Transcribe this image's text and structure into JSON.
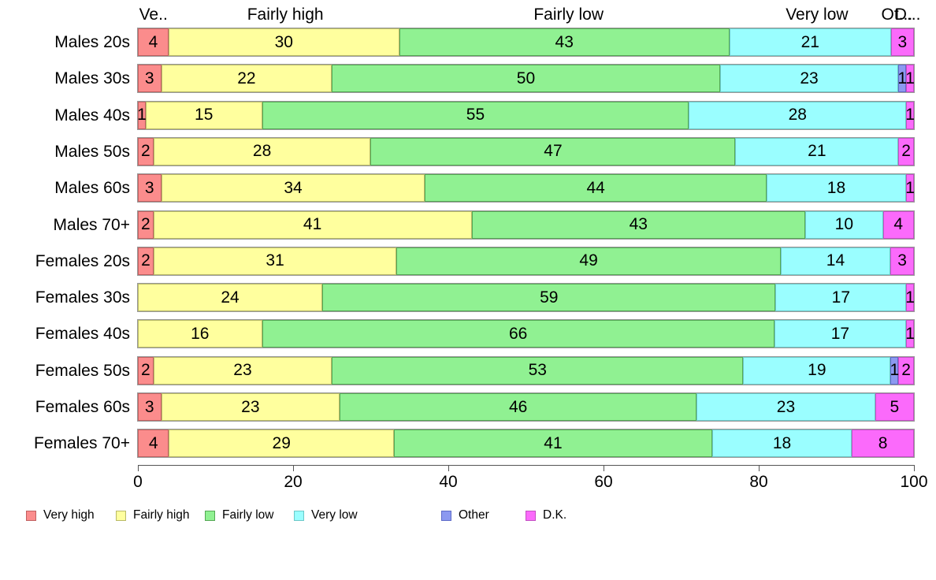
{
  "chart_data": {
    "type": "bar",
    "variant": "stacked-horizontal-100pct",
    "categories": [
      "Males 20s",
      "Males 30s",
      "Males 40s",
      "Males 50s",
      "Males 60s",
      "Males 70+",
      "Females 20s",
      "Females 30s",
      "Females 40s",
      "Females 50s",
      "Females 60s",
      "Females 70+"
    ],
    "series": [
      {
        "name": "Very high",
        "color": "#FB8C8C",
        "border": "#C06060",
        "values": [
          4,
          3,
          1,
          2,
          3,
          2,
          2,
          0,
          0,
          2,
          3,
          4
        ]
      },
      {
        "name": "Fairly high",
        "color": "#FFFF9E",
        "border": "#B9BA67",
        "values": [
          30,
          22,
          15,
          28,
          34,
          41,
          31,
          24,
          16,
          23,
          23,
          29
        ]
      },
      {
        "name": "Fairly low",
        "color": "#90F192",
        "border": "#54A854",
        "values": [
          43,
          50,
          55,
          47,
          44,
          43,
          49,
          59,
          66,
          53,
          46,
          41
        ]
      },
      {
        "name": "Very low",
        "color": "#9AFEFF",
        "border": "#6CC8C8",
        "values": [
          21,
          23,
          28,
          21,
          18,
          10,
          14,
          17,
          17,
          19,
          23,
          18
        ]
      },
      {
        "name": "Other",
        "color": "#8C99F0",
        "border": "#5E6BC8",
        "values": [
          0,
          1,
          0,
          0,
          0,
          0,
          0,
          0,
          0,
          1,
          0,
          0
        ]
      },
      {
        "name": "D.K.",
        "color": "#FB6AFB",
        "border": "#C34FC3",
        "values": [
          3,
          1,
          1,
          2,
          1,
          4,
          3,
          1,
          1,
          2,
          5,
          8
        ]
      }
    ],
    "column_headers": [
      {
        "label": "Ve..",
        "anchor_pct": 2.0
      },
      {
        "label": "Fairly high",
        "anchor_pct": 19.0
      },
      {
        "label": "Fairly low",
        "anchor_pct": 55.5
      },
      {
        "label": "Very low",
        "anchor_pct": 87.5
      },
      {
        "label": "Ot...",
        "anchor_pct": 97.8
      },
      {
        "label": "D...",
        "anchor_pct": 99.2
      }
    ],
    "x_ticks": [
      0,
      20,
      40,
      60,
      80,
      100
    ],
    "xlim": [
      0,
      100
    ],
    "grid": false,
    "legend": {
      "position": "bottom",
      "entries": [
        "Very high",
        "Fairly high",
        "Fairly low",
        "Very low",
        "Other",
        "D.K."
      ]
    }
  }
}
